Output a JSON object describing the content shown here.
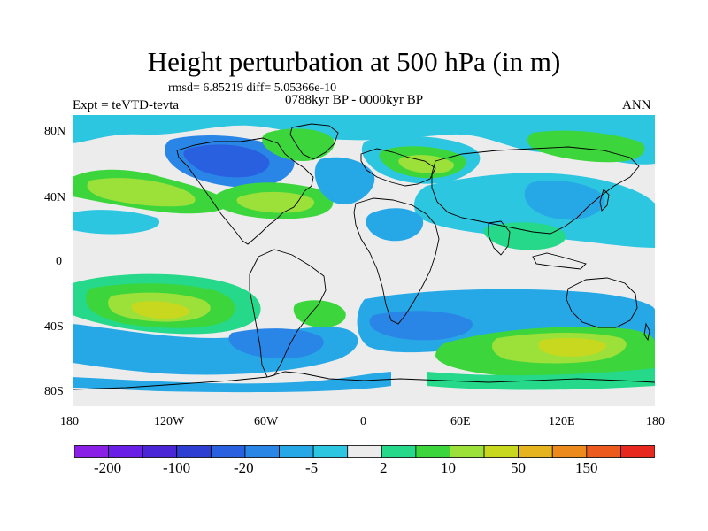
{
  "title": "Height perturbation at 500 hPa (in m)",
  "stats": "rmsd= 6.85219 diff= 5.05366e-10",
  "expt_label": "Expt = teVTD-tevta",
  "period_label": "0788kyr BP - 0000kyr BP",
  "season_label": "ANN",
  "lat_labels": [
    "80N",
    "40N",
    "0",
    "40S",
    "80S"
  ],
  "lon_labels": [
    "180",
    "120W",
    "60W",
    "0",
    "60E",
    "120E",
    "180"
  ],
  "colorbar": {
    "colors": [
      "#8a1fe6",
      "#6a1fe6",
      "#4a26d6",
      "#2e3ed2",
      "#2960e0",
      "#2a86e6",
      "#27a8e6",
      "#2cc6e0",
      "#ececec",
      "#25d88a",
      "#3cd63c",
      "#9ce03a",
      "#c8d81e",
      "#e6b41e",
      "#ec8a1e",
      "#ec5a1e",
      "#e6281e"
    ],
    "labels": [
      "-200",
      "-100",
      "-20",
      "-5",
      "2",
      "10",
      "50",
      "150"
    ]
  },
  "palette": {
    "neutral": "#ececec",
    "cyan": "#2cc6e0",
    "sky": "#27a8e6",
    "blue": "#2a86e6",
    "darkblue": "#2960e0",
    "teal": "#25d88a",
    "green": "#3cd63c",
    "yellowgreen": "#9ce03a",
    "yellow": "#c8d81e",
    "orange": "#e6b41e",
    "coast": "#000000"
  }
}
